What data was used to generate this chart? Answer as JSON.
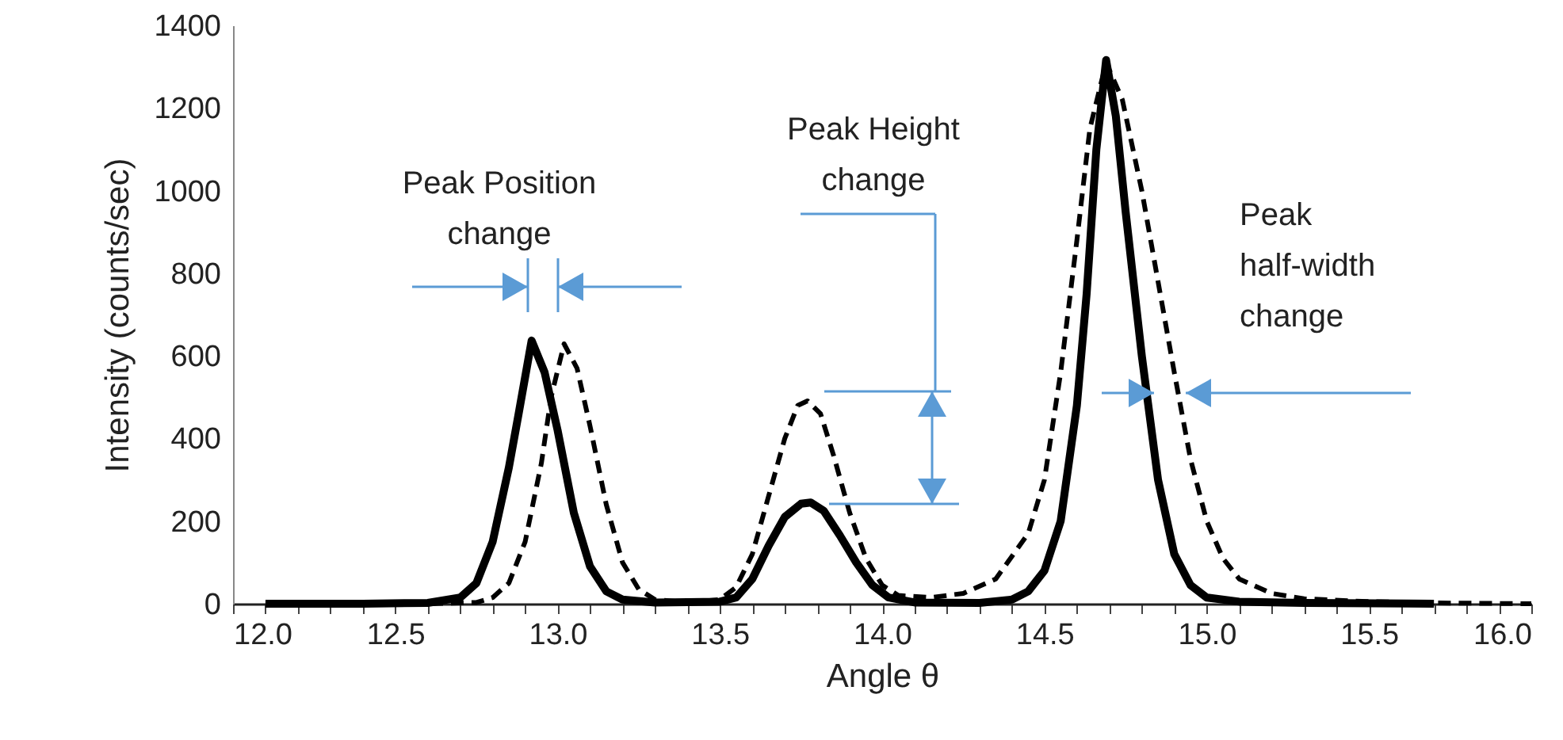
{
  "chart_data": {
    "type": "line",
    "xlabel": "Angle θ",
    "ylabel": "Intensity (counts/sec)",
    "xlim": [
      12,
      16
    ],
    "ylim": [
      0,
      1400
    ],
    "xticks": [
      {
        "value": 12,
        "label": "12.0"
      },
      {
        "value": 12.1,
        "label": null
      },
      {
        "value": 12.2,
        "label": null
      },
      {
        "value": 12.3,
        "label": null
      },
      {
        "value": 12.4,
        "label": null
      },
      {
        "value": 12.5,
        "label": "12.5"
      },
      {
        "value": 12.6,
        "label": null
      },
      {
        "value": 12.7,
        "label": null
      },
      {
        "value": 12.8,
        "label": null
      },
      {
        "value": 12.9,
        "label": null
      },
      {
        "value": 13,
        "label": "13.0"
      },
      {
        "value": 13.1,
        "label": null
      },
      {
        "value": 13.2,
        "label": null
      },
      {
        "value": 13.3,
        "label": null
      },
      {
        "value": 13.4,
        "label": null
      },
      {
        "value": 13.5,
        "label": "13.5"
      },
      {
        "value": 13.6,
        "label": null
      },
      {
        "value": 13.7,
        "label": null
      },
      {
        "value": 13.8,
        "label": null
      },
      {
        "value": 13.9,
        "label": null
      },
      {
        "value": 14,
        "label": "14.0"
      },
      {
        "value": 14.1,
        "label": null
      },
      {
        "value": 14.2,
        "label": null
      },
      {
        "value": 14.3,
        "label": null
      },
      {
        "value": 14.4,
        "label": null
      },
      {
        "value": 14.5,
        "label": "14.5"
      },
      {
        "value": 14.6,
        "label": null
      },
      {
        "value": 14.7,
        "label": null
      },
      {
        "value": 14.8,
        "label": null
      },
      {
        "value": 14.9,
        "label": null
      },
      {
        "value": 15,
        "label": "15.0"
      },
      {
        "value": 15.1,
        "label": null
      },
      {
        "value": 15.2,
        "label": null
      },
      {
        "value": 15.3,
        "label": null
      },
      {
        "value": 15.4,
        "label": null
      },
      {
        "value": 15.5,
        "label": "15.5"
      },
      {
        "value": 15.6,
        "label": null
      },
      {
        "value": 15.7,
        "label": null
      },
      {
        "value": 15.8,
        "label": null
      },
      {
        "value": 15.9,
        "label": null
      },
      {
        "value": 16,
        "label": "16.0"
      }
    ],
    "yticks": [
      0,
      200,
      400,
      600,
      800,
      1000,
      1200,
      1400
    ],
    "grid": false,
    "marker": "none",
    "series": [
      {
        "color": "#000000",
        "line_style": "solid",
        "x": [
          12.1,
          12.4,
          12.6,
          12.7,
          12.75,
          12.8,
          12.85,
          12.88,
          12.92,
          12.96,
          13.0,
          13.05,
          13.1,
          13.15,
          13.2,
          13.3,
          13.5,
          13.55,
          13.6,
          13.65,
          13.7,
          13.75,
          13.78,
          13.82,
          13.87,
          13.92,
          13.97,
          14.02,
          14.1,
          14.3,
          14.4,
          14.45,
          14.5,
          14.55,
          14.6,
          14.63,
          14.66,
          14.69,
          14.72,
          14.75,
          14.8,
          14.85,
          14.9,
          14.95,
          15.0,
          15.1,
          15.3,
          15.7
        ],
        "values": [
          0,
          0,
          2,
          15,
          50,
          150,
          330,
          460,
          637,
          560,
          420,
          220,
          90,
          30,
          10,
          3,
          5,
          15,
          60,
          140,
          210,
          242,
          245,
          225,
          165,
          100,
          45,
          15,
          3,
          2,
          10,
          30,
          80,
          200,
          480,
          750,
          1100,
          1316,
          1180,
          950,
          600,
          300,
          120,
          45,
          15,
          5,
          2,
          0
        ]
      },
      {
        "color": "#000000",
        "line_style": "dashed",
        "x": [
          12.1,
          12.6,
          12.75,
          12.8,
          12.85,
          12.9,
          12.95,
          12.98,
          13.02,
          13.06,
          13.1,
          13.15,
          13.2,
          13.25,
          13.3,
          13.4,
          13.5,
          13.55,
          13.6,
          13.65,
          13.7,
          13.74,
          13.77,
          13.81,
          13.85,
          13.9,
          13.95,
          14.0,
          14.05,
          14.15,
          14.25,
          14.35,
          14.45,
          14.5,
          14.55,
          14.6,
          14.64,
          14.69,
          14.74,
          14.8,
          14.85,
          14.9,
          14.95,
          15.0,
          15.05,
          15.1,
          15.2,
          15.3,
          15.5,
          15.7,
          16.0
        ],
        "values": [
          0,
          0,
          3,
          15,
          50,
          150,
          340,
          500,
          629,
          570,
          430,
          240,
          100,
          35,
          10,
          3,
          10,
          40,
          120,
          260,
          400,
          480,
          491,
          460,
          360,
          220,
          110,
          45,
          20,
          15,
          25,
          60,
          170,
          300,
          560,
          880,
          1150,
          1310,
          1220,
          1000,
          780,
          560,
          350,
          200,
          110,
          60,
          25,
          12,
          5,
          2,
          0
        ]
      }
    ],
    "annotations": [
      "Peak Position change",
      "Peak Height change",
      "Peak half-width change"
    ]
  }
}
